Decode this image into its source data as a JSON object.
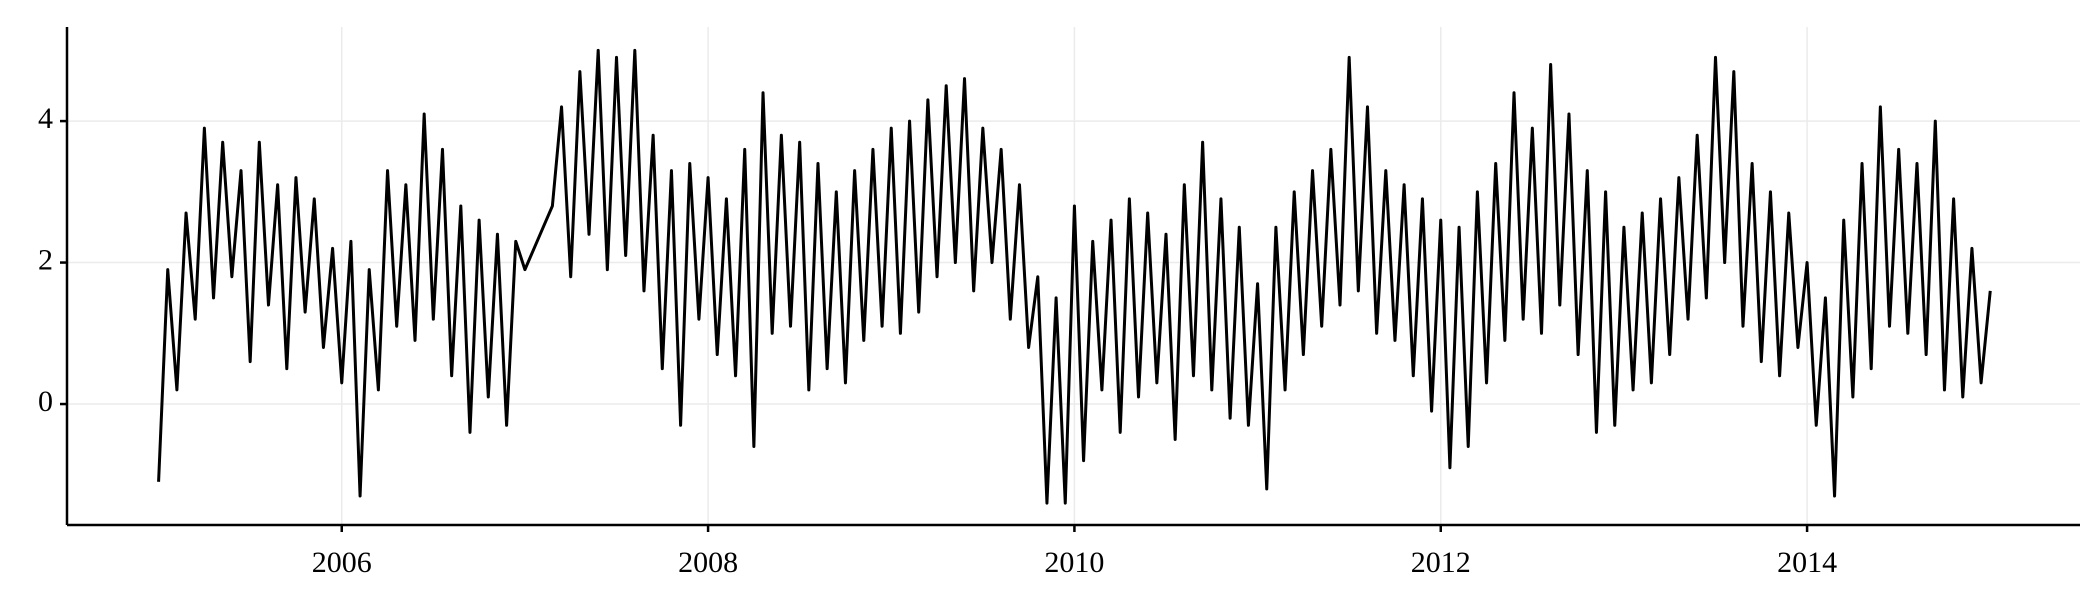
{
  "chart_data": {
    "type": "line",
    "color": "#000000",
    "grid": true,
    "xlim": [
      2004.5,
      2015.49
    ],
    "xticks": [
      2006,
      2008,
      2010,
      2012,
      2014
    ],
    "ylim": [
      -1.71,
      5.33
    ],
    "yticks": [
      0,
      2,
      4
    ],
    "x": [
      2005,
      2005.05,
      2005.1,
      2005.15,
      2005.2,
      2005.25,
      2005.3,
      2005.35,
      2005.4,
      2005.45,
      2005.5,
      2005.55,
      2005.6,
      2005.65,
      2005.7,
      2005.75,
      2005.8,
      2005.85,
      2005.9,
      2005.95,
      2006,
      2006.05,
      2006.1,
      2006.15,
      2006.2,
      2006.25,
      2006.3,
      2006.35,
      2006.4,
      2006.45,
      2006.5,
      2006.55,
      2006.6,
      2006.65,
      2006.7,
      2006.75,
      2006.8,
      2006.85,
      2006.9,
      2006.95,
      2007,
      2007.05,
      2007.1,
      2007.15,
      2007.2,
      2007.25,
      2007.3,
      2007.35,
      2007.4,
      2007.45,
      2007.5,
      2007.55,
      2007.6,
      2007.65,
      2007.7,
      2007.75,
      2007.8,
      2007.85,
      2007.9,
      2007.95,
      2008,
      2008.05,
      2008.1,
      2008.15,
      2008.2,
      2008.25,
      2008.3,
      2008.35,
      2008.4,
      2008.45,
      2008.5,
      2008.55,
      2008.6,
      2008.65,
      2008.7,
      2008.75,
      2008.8,
      2008.85,
      2008.9,
      2008.95,
      2009,
      2009.05,
      2009.1,
      2009.15,
      2009.2,
      2009.25,
      2009.3,
      2009.35,
      2009.4,
      2009.45,
      2009.5,
      2009.55,
      2009.6,
      2009.65,
      2009.7,
      2009.75,
      2009.8,
      2009.85,
      2009.9,
      2009.95,
      2010,
      2010.05,
      2010.1,
      2010.15,
      2010.2,
      2010.25,
      2010.3,
      2010.35,
      2010.4,
      2010.45,
      2010.5,
      2010.55,
      2010.6,
      2010.65,
      2010.7,
      2010.75,
      2010.8,
      2010.85,
      2010.9,
      2010.95,
      2011,
      2011.05,
      2011.1,
      2011.15,
      2011.2,
      2011.25,
      2011.3,
      2011.35,
      2011.4,
      2011.45,
      2011.5,
      2011.55,
      2011.6,
      2011.65,
      2011.7,
      2011.75,
      2011.8,
      2011.85,
      2011.9,
      2011.95,
      2012,
      2012.05,
      2012.1,
      2012.15,
      2012.2,
      2012.25,
      2012.3,
      2012.35,
      2012.4,
      2012.45,
      2012.5,
      2012.55,
      2012.6,
      2012.65,
      2012.7,
      2012.75,
      2012.8,
      2012.85,
      2012.9,
      2012.95,
      2013,
      2013.05,
      2013.1,
      2013.15,
      2013.2,
      2013.25,
      2013.3,
      2013.35,
      2013.4,
      2013.45,
      2013.5,
      2013.55,
      2013.6,
      2013.65,
      2013.7,
      2013.75,
      2013.8,
      2013.85,
      2013.9,
      2013.95,
      2014,
      2014.05,
      2014.1,
      2014.15,
      2014.2,
      2014.25,
      2014.3,
      2014.35,
      2014.4,
      2014.45,
      2014.5,
      2014.55,
      2014.6,
      2014.65,
      2014.7,
      2014.75,
      2014.8,
      2014.85,
      2014.9,
      2014.95,
      2015
    ],
    "values": [
      -1.1,
      1.9,
      0.2,
      2.7,
      1.2,
      3.9,
      1.5,
      3.7,
      1.8,
      3.3,
      0.6,
      3.7,
      1.4,
      3.1,
      0.5,
      3.2,
      1.3,
      2.9,
      0.8,
      2.2,
      0.3,
      2.3,
      -1.3,
      1.9,
      0.2,
      3.3,
      1.1,
      3.1,
      0.9,
      4.1,
      1.2,
      3.6,
      0.4,
      2.8,
      -0.4,
      2.6,
      0.1,
      2.4,
      -0.3,
      2.3,
      1.9,
      2.2,
      2.5,
      2.8,
      4.2,
      1.8,
      4.7,
      2.4,
      5.0,
      1.9,
      4.9,
      2.1,
      5.0,
      1.6,
      3.8,
      0.5,
      3.3,
      -0.3,
      3.4,
      1.2,
      3.2,
      0.7,
      2.9,
      0.4,
      3.6,
      -0.6,
      4.4,
      1.0,
      3.8,
      1.1,
      3.7,
      0.2,
      3.4,
      0.5,
      3.0,
      0.3,
      3.3,
      0.9,
      3.6,
      1.1,
      3.9,
      1.0,
      4.0,
      1.3,
      4.3,
      1.8,
      4.5,
      2.0,
      4.6,
      1.6,
      3.9,
      2.0,
      3.6,
      1.2,
      3.1,
      0.8,
      1.8,
      -1.4,
      1.5,
      -1.4,
      2.8,
      -0.8,
      2.3,
      0.2,
      2.6,
      -0.4,
      2.9,
      0.1,
      2.7,
      0.3,
      2.4,
      -0.5,
      3.1,
      0.4,
      3.7,
      0.2,
      2.9,
      -0.2,
      2.5,
      -0.3,
      1.7,
      -1.2,
      2.5,
      0.2,
      3.0,
      0.7,
      3.3,
      1.1,
      3.6,
      1.4,
      4.9,
      1.6,
      4.2,
      1.0,
      3.3,
      0.9,
      3.1,
      0.4,
      2.9,
      -0.1,
      2.6,
      -0.9,
      2.5,
      -0.6,
      3.0,
      0.3,
      3.4,
      0.9,
      4.4,
      1.2,
      3.9,
      1.0,
      4.8,
      1.4,
      4.1,
      0.7,
      3.3,
      -0.4,
      3.0,
      -0.3,
      2.5,
      0.2,
      2.7,
      0.3,
      2.9,
      0.7,
      3.2,
      1.2,
      3.8,
      1.5,
      4.9,
      2.0,
      4.7,
      1.1,
      3.4,
      0.6,
      3.0,
      0.4,
      2.7,
      0.8,
      2.0,
      -0.3,
      1.5,
      -1.3,
      2.6,
      0.1,
      3.4,
      0.5,
      4.2,
      1.1,
      3.6,
      1.0,
      3.4,
      0.7,
      4.0,
      0.2,
      2.9,
      0.1,
      2.2,
      0.3,
      1.6
    ]
  }
}
